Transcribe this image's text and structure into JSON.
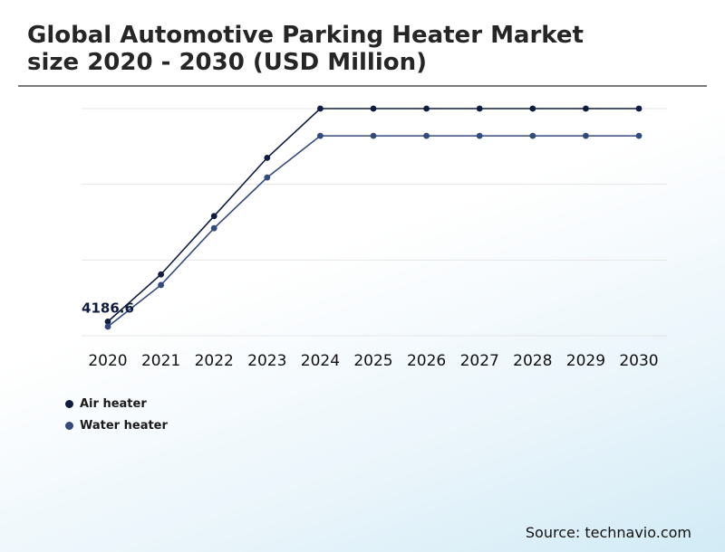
{
  "header": {
    "title_line1": "Global Automotive Parking Heater Market",
    "title_line2": "size 2020 - 2030 (USD Million)"
  },
  "source": "Source: technavio.com",
  "colors": {
    "air_heater": "#0f1c3f",
    "water_heater": "#334a7d",
    "grid": "#e6e6e6"
  },
  "chart_data": {
    "type": "line",
    "title": "Global Automotive Parking Heater Market size 2020 - 2030 (USD Million)",
    "categories": [
      "2020",
      "2021",
      "2022",
      "2023",
      "2024",
      "2025",
      "2026",
      "2027",
      "2028",
      "2029",
      "2030"
    ],
    "series": [
      {
        "name": "Air heater",
        "values": [
          4186.6,
          4810,
          5580,
          6350,
          7000,
          7000,
          7000,
          7000,
          7000,
          7000,
          7000
        ]
      },
      {
        "name": "Water heater",
        "values": [
          4120,
          4670,
          5420,
          6090,
          6640,
          6640,
          6640,
          6640,
          6640,
          6640,
          6640
        ]
      }
    ],
    "data_labels": [
      {
        "series": "Air heater",
        "category": "2020",
        "text": "4186.6"
      }
    ],
    "ylim": [
      4000,
      7000
    ],
    "grid": true,
    "legend_position": "bottom-left",
    "xlabel": "",
    "ylabel": ""
  }
}
